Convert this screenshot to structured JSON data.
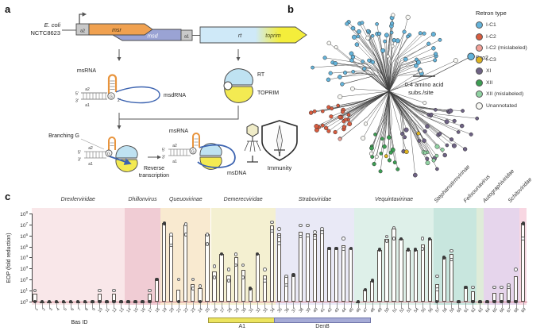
{
  "panels": {
    "a": {
      "label": "a",
      "strain": {
        "line1": "E. coli",
        "line2": "NCTC8623"
      },
      "genes": {
        "a2": "a2",
        "msr": "msr",
        "msd": "msd",
        "a1": "a1",
        "rt": "rt",
        "toprim": "toprim"
      },
      "rna": {
        "msrna": "msRNA",
        "msdrna": "msdRNA",
        "five_prime": "5′",
        "three_prime": "3′",
        "a2": "a2",
        "a1": "a1",
        "g": "G",
        "two_prime": "2′"
      },
      "protein": {
        "rt": "RT",
        "toprim": "TOPRIM"
      },
      "annotations": {
        "branching_g": "Branching G",
        "reverse_line1": "Reverse",
        "reverse_line2": "transcription",
        "msdna": "msDNA",
        "immunity": "Immunity"
      },
      "colors": {
        "msr": "#f0a150",
        "msd": "#9aa3d4",
        "anchor_box": "#c9c9c9",
        "rt": "#cfe9f8",
        "toprim": "#f4ee3b",
        "rna_orange": "#e8943d",
        "dna_blue": "#3c63b0"
      }
    },
    "b": {
      "label": "b",
      "legend_title": "Retron type",
      "legend": [
        {
          "label": "I-C1",
          "color": "#64b3da"
        },
        {
          "label": "I-C2",
          "color": "#d85c3f"
        },
        {
          "label": "I-C2 (mislabeled)",
          "color": "#f2a097"
        },
        {
          "label": "I-C3",
          "color": "#ddb321"
        },
        {
          "label": "XI",
          "color": "#6e6284"
        },
        {
          "label": "XII",
          "color": "#3c9e53"
        },
        {
          "label": "XII (mislabeled)",
          "color": "#90d2a2"
        },
        {
          "label": "Unannotated",
          "color": "#f7f7f3"
        }
      ],
      "eco2_label": "Eco2",
      "scale_bar": {
        "line1": "0.4 amino acid",
        "line2": "subs./site"
      },
      "tree": {
        "clusters": [
          {
            "type": "I-C1",
            "color": "#64b3da",
            "a0": 25,
            "a1": 175,
            "n": 62,
            "r0": 42,
            "r1": 102
          },
          {
            "type": "I-C2",
            "color": "#d85c3f",
            "a0": 193,
            "a1": 220,
            "n": 26,
            "r0": 58,
            "r1": 105
          },
          {
            "type": "XI",
            "color": "#6e6284",
            "a0": 283,
            "a1": 348,
            "n": 33,
            "r0": 52,
            "r1": 122
          },
          {
            "type": "XII",
            "color": "#3c9e53",
            "a0": 252,
            "a1": 280,
            "n": 15,
            "r0": 55,
            "r1": 103
          },
          {
            "type": "XII (mislabeled)",
            "color": "#90d2a2",
            "a0": 296,
            "a1": 313,
            "n": 8,
            "r0": 88,
            "r1": 116
          },
          {
            "type": "I-C3",
            "color": "#ddb321",
            "a0": 262,
            "a1": 308,
            "n": 3,
            "r0": 58,
            "r1": 92
          },
          {
            "type": "I-C2 (mislabeled)",
            "color": "#f2a097",
            "a0": 218,
            "a1": 256,
            "n": 2,
            "r0": 68,
            "r1": 96
          },
          {
            "type": "Unannotated",
            "color": "#f7f7f3",
            "a0": 0,
            "a1": 360,
            "n": 16,
            "r0": 44,
            "r1": 100
          }
        ],
        "eco2_node": {
          "angle": 23,
          "r": 112
        }
      }
    },
    "c": {
      "label": "c"
    }
  },
  "chart_data": {
    "type": "bar",
    "title": "",
    "xlabel": "Bas ID",
    "ylabel": "EOP (fold reduction)",
    "yscale": "log10",
    "ylim_log10": [
      0,
      8
    ],
    "y_tick_exponents": [
      0,
      1,
      2,
      3,
      4,
      5,
      6,
      7,
      8
    ],
    "reference_line_log10": 0,
    "bas_ids": [
      1,
      2,
      3,
      4,
      5,
      6,
      7,
      8,
      9,
      10,
      11,
      12,
      13,
      14,
      15,
      16,
      17,
      18,
      19,
      20,
      21,
      22,
      23,
      24,
      25,
      26,
      27,
      28,
      29,
      30,
      31,
      32,
      33,
      34,
      35,
      36,
      37,
      38,
      39,
      40,
      41,
      42,
      43,
      44,
      45,
      46,
      47,
      48,
      49,
      50,
      51,
      52,
      53,
      54,
      55,
      56,
      57,
      58,
      59,
      60,
      61,
      62,
      63,
      64,
      65,
      66,
      67,
      68,
      69
    ],
    "values_log10": [
      0.7,
      0,
      0,
      0,
      0,
      0,
      0,
      0,
      0,
      0.7,
      0,
      0.7,
      0,
      0,
      0,
      0,
      0.7,
      2.0,
      7.1,
      6.0,
      1.1,
      7.0,
      1.6,
      1.2,
      6.1,
      2.7,
      4.3,
      2.4,
      4.0,
      2.9,
      1.2,
      4.3,
      2.4,
      6.9,
      6.2,
      2.3,
      2.4,
      6.3,
      6.2,
      6.1,
      6.5,
      4.8,
      4.8,
      5.1,
      4.8,
      0,
      1.1,
      1.9,
      4.7,
      5.7,
      6.6,
      5.7,
      4.7,
      4.7,
      5.2,
      5.7,
      1.6,
      4.0,
      4.3,
      0,
      1.3,
      0.9,
      0,
      0,
      0.8,
      0.8,
      1.2,
      2.3,
      7.1
    ],
    "open_points_log10": [
      [
        1.0
      ],
      [],
      [],
      [],
      [],
      [],
      [],
      [],
      [],
      [
        1.0
      ],
      [],
      [
        1.0
      ],
      [],
      [],
      [],
      [],
      [
        1.0
      ],
      [],
      [],
      [
        6.1,
        5.1
      ],
      [
        2.0
      ],
      [
        7.0,
        6.1
      ],
      [
        2.0,
        1.2
      ],
      [
        1.4
      ],
      [
        6.1,
        5.2
      ],
      [
        3.2,
        2.2
      ],
      [],
      [
        2.9,
        1.9
      ],
      [
        4.3,
        3.3
      ],
      [
        3.3,
        2.2
      ],
      [],
      [],
      [
        2.9,
        1.9
      ],
      [
        7.2,
        6.4
      ],
      [
        6.6,
        5.9,
        5.3
      ],
      [
        2.3,
        1.5
      ],
      [],
      [
        6.9,
        5.9
      ],
      [
        6.9,
        6.0
      ],
      [
        6.3,
        5.8
      ],
      [
        6.6,
        6.3
      ],
      [],
      [],
      [
        5.7,
        4.8
      ],
      [],
      [],
      [],
      [],
      [],
      [
        5.9,
        5.5
      ],
      [
        6.7,
        5.7
      ],
      [],
      [],
      [],
      [
        5.7,
        4.8
      ],
      [],
      [
        2.3,
        1.1
      ],
      [],
      [
        4.6,
        3.8
      ],
      [],
      [],
      [
        1.3
      ],
      [],
      [],
      [
        1.3
      ],
      [
        1.3
      ],
      [
        1.5,
        1.3
      ],
      [
        2.9
      ],
      [
        5.7
      ]
    ],
    "dark_points_log10": [
      [
        0
      ],
      [
        0
      ],
      [
        0
      ],
      [
        0
      ],
      [
        0
      ],
      [
        0
      ],
      [
        0
      ],
      [
        0
      ],
      [
        0
      ],
      [
        0
      ],
      [
        0
      ],
      [
        0
      ],
      [
        0
      ],
      [
        0
      ],
      [
        0
      ],
      [
        0
      ],
      [
        0
      ],
      [
        2.0
      ],
      [
        7.1
      ],
      [],
      [
        0
      ],
      [],
      [],
      [
        0
      ],
      [],
      [],
      [
        4.3
      ],
      [],
      [],
      [],
      [
        1.2
      ],
      [
        4.3
      ],
      [],
      [],
      [],
      [],
      [
        2.4
      ],
      [],
      [],
      [],
      [],
      [
        4.8
      ],
      [
        4.8
      ],
      [],
      [
        4.8
      ],
      [
        0
      ],
      [
        1.1
      ],
      [
        1.9
      ],
      [
        4.7
      ],
      [],
      [],
      [
        5.7
      ],
      [
        4.7
      ],
      [
        4.7
      ],
      [],
      [
        5.7
      ],
      [
        0
      ],
      [
        4.0
      ],
      [],
      [
        0
      ],
      [
        1.3
      ],
      [
        0
      ],
      [
        0
      ],
      [
        0
      ],
      [
        0
      ],
      [
        0
      ],
      [
        0
      ],
      [
        0
      ],
      [
        7.1
      ]
    ],
    "family_groups": [
      {
        "name": "Drexlerviridae",
        "from": 1,
        "to": 13,
        "color": "#f9e7e9",
        "rotated": false
      },
      {
        "name": "Dhillonvirus",
        "from": 14,
        "to": 18,
        "color": "#f0ccd4",
        "rotated": false
      },
      {
        "name": "Queuovirinae",
        "from": 19,
        "to": 25,
        "color": "#f9ead0",
        "rotated": false
      },
      {
        "name": "Demerecviridae",
        "from": 26,
        "to": 34,
        "color": "#f4f0d1",
        "rotated": false
      },
      {
        "name": "Straboviridae",
        "from": 35,
        "to": 45,
        "color": "#e9e9f6",
        "rotated": false
      },
      {
        "name": "Vequintavirinae",
        "from": 46,
        "to": 56,
        "color": "#def0e9",
        "rotated": false
      },
      {
        "name": "Stephanstirmvirinae",
        "from": 57,
        "to": 62,
        "color": "#c8e6de",
        "rotated": true
      },
      {
        "name": "Felixounavirus",
        "from": 63,
        "to": 63,
        "color": "#dfecd9",
        "rotated": true
      },
      {
        "name": "Autographiviridae",
        "from": 64,
        "to": 68,
        "color": "#e6d5ec",
        "rotated": true
      },
      {
        "name": "Schitoviridae",
        "from": 69,
        "to": 69,
        "color": "#f8d7e2",
        "rotated": true
      }
    ],
    "range_annotations": [
      {
        "label": "A1",
        "from_bas": 25.5,
        "to_bas": 34.2,
        "color": "#ece45f",
        "border": "#a39b3a"
      },
      {
        "label": "DenB",
        "from_bas": 34.6,
        "to_bas": 47.5,
        "color": "#a6abd6",
        "border": "#6f74a8"
      }
    ]
  }
}
